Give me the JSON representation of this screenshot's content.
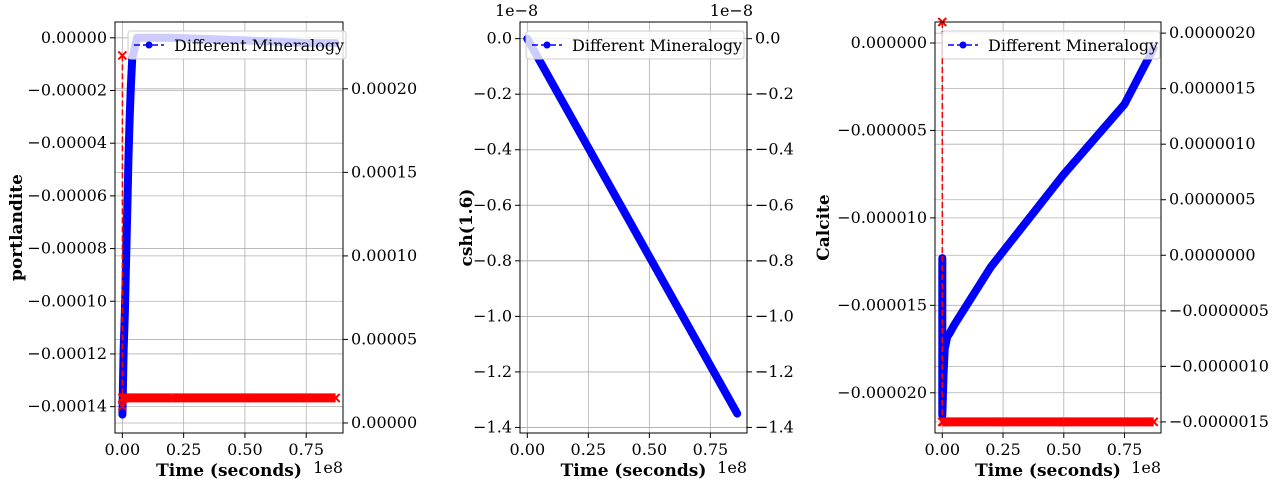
{
  "chart_data": [
    {
      "type": "line",
      "ylabel": "portlandite",
      "xlabel": "Time (seconds)",
      "x_offset_text": "1e8",
      "xlim": [
        -0.03,
        0.9
      ],
      "xticks": [
        0.0,
        0.25,
        0.5,
        0.75
      ],
      "xtick_labels": [
        "0.00",
        "0.25",
        "0.50",
        "0.75"
      ],
      "ylim": [
        -0.00015,
        6e-06
      ],
      "yticks": [
        -0.00014,
        -0.00012,
        -0.0001,
        -8e-05,
        -6e-05,
        -4e-05,
        -2e-05,
        0.0
      ],
      "ytick_labels": [
        "−0.00014",
        "−0.00012",
        "−0.00010",
        "−0.00008",
        "−0.00006",
        "−0.00004",
        "−0.00002",
        "0.00000"
      ],
      "y2lim": [
        -6e-06,
        0.00024
      ],
      "y2ticks": [
        0.0,
        5e-05,
        0.0001,
        0.00015,
        0.0002
      ],
      "y2tick_labels": [
        "0.00000",
        "0.00005",
        "0.00010",
        "0.00015",
        "0.00020"
      ],
      "grid": true,
      "legend_loc": "upper right",
      "series": [
        {
          "name": "Different Mineralogy",
          "axis": "left",
          "style": "blue-dash-circle",
          "color": "#0000ff",
          "x": [
            0.0,
            0.005,
            0.01,
            0.015,
            0.02,
            0.025,
            0.03,
            0.035,
            0.04,
            0.06,
            0.2,
            0.5,
            0.75,
            0.87
          ],
          "y": [
            -0.000143,
            -0.000119,
            -0.000105,
            -8.6e-05,
            -6.5e-05,
            -4.5e-05,
            -3e-05,
            -1.8e-05,
            -8e-06,
            0.0,
            0.0,
            -1e-06,
            -2e-06,
            -2e-06
          ]
        },
        {
          "axis": "right",
          "style": "red-dash-x",
          "color": "#ff0000",
          "x": [
            0.0,
            0.0,
            0.0,
            0.005,
            0.01,
            0.2,
            0.5,
            0.75,
            0.87
          ],
          "y": [
            0.00022,
            1e-05,
            1.5e-05,
            1.5e-05,
            1.5e-05,
            1.5e-05,
            1.5e-05,
            1.5e-05,
            1.5e-05
          ]
        }
      ]
    },
    {
      "type": "line",
      "ylabel": "csh(1.6)",
      "xlabel": "Time (seconds)",
      "x_offset_text": "1e8",
      "y_offset_text": "1e−8",
      "y2_offset_text": "1e−8",
      "xlim": [
        -0.03,
        0.9
      ],
      "xticks": [
        0.0,
        0.25,
        0.5,
        0.75
      ],
      "xtick_labels": [
        "0.00",
        "0.25",
        "0.50",
        "0.75"
      ],
      "ylim": [
        -1.42,
        0.06
      ],
      "yticks": [
        -1.4,
        -1.2,
        -1.0,
        -0.8,
        -0.6,
        -0.4,
        -0.2,
        0.0
      ],
      "ytick_labels": [
        "−1.4",
        "−1.2",
        "−1.0",
        "−0.8",
        "−0.6",
        "−0.4",
        "−0.2",
        "0.0"
      ],
      "y2lim": [
        -1.42,
        0.06
      ],
      "y2ticks": [
        -1.4,
        -1.2,
        -1.0,
        -0.8,
        -0.6,
        -0.4,
        -0.2,
        0.0
      ],
      "y2tick_labels": [
        "−1.4",
        "−1.2",
        "−1.0",
        "−0.8",
        "−0.6",
        "−0.4",
        "−0.2",
        "0.0"
      ],
      "grid": true,
      "legend_loc": "upper right",
      "series": [
        {
          "name": "Different Mineralogy",
          "axis": "left",
          "style": "blue-dash-circle",
          "color": "#0000ff",
          "x": [
            0.0,
            0.86
          ],
          "y": [
            0.0,
            -1.35
          ]
        }
      ]
    },
    {
      "type": "line",
      "ylabel": "Calcite",
      "xlabel": "Time (seconds)",
      "x_offset_text": "1e8",
      "xlim": [
        -0.03,
        0.9
      ],
      "xticks": [
        0.0,
        0.25,
        0.5,
        0.75
      ],
      "xtick_labels": [
        "0.00",
        "0.25",
        "0.50",
        "0.75"
      ],
      "ylim": [
        -2.23e-05,
        1.2e-06
      ],
      "yticks": [
        -2e-05,
        -1.5e-05,
        -1e-05,
        -5e-06,
        0.0
      ],
      "ytick_labels": [
        "−0.000020",
        "−0.000015",
        "−0.000010",
        "−0.000005",
        "0.000000"
      ],
      "y2lim": [
        -1.6e-06,
        2.1e-06
      ],
      "y2ticks": [
        -1.5e-06,
        -1e-06,
        -5e-07,
        0.0,
        5e-07,
        1e-06,
        1.5e-06,
        2e-06
      ],
      "y2tick_labels": [
        "−0.0000015",
        "−0.0000010",
        "−0.0000005",
        "0.0000000",
        "0.0000005",
        "0.0000010",
        "0.0000015",
        "0.0000020"
      ],
      "grid": true,
      "legend_loc": "upper right",
      "series": [
        {
          "name": "Different Mineralogy",
          "axis": "left",
          "style": "blue-dash-circle",
          "color": "#0000ff",
          "x": [
            0.0,
            0.0,
            0.0,
            0.005,
            0.01,
            0.02,
            0.03,
            0.05,
            0.2,
            0.5,
            0.75,
            0.87
          ],
          "y": [
            -1.23e-05,
            -2.13e-05,
            -2.13e-05,
            -1.9e-05,
            -1.75e-05,
            -1.68e-05,
            -1.66e-05,
            -1.61e-05,
            -1.28e-05,
            -7.5e-06,
            -3.5e-06,
            -3e-07
          ]
        },
        {
          "axis": "right",
          "style": "red-dash-x",
          "color": "#ff0000",
          "x": [
            0.0,
            0.0,
            0.005,
            0.25,
            0.5,
            0.75,
            0.87
          ],
          "y": [
            2.1e-06,
            -1.5e-06,
            -1.5e-06,
            -1.5e-06,
            -1.5e-06,
            -1.5e-06,
            -1.5e-06
          ]
        }
      ]
    }
  ]
}
